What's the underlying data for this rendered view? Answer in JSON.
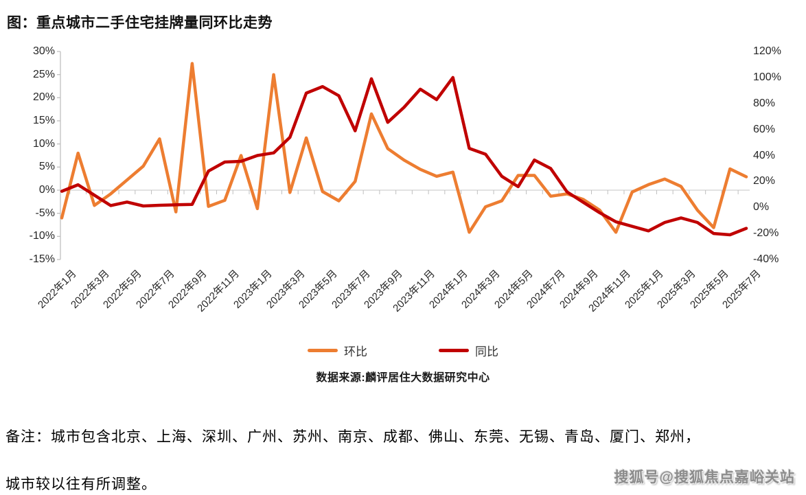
{
  "title": "图：重点城市二手住宅挂牌量同环比走势",
  "source_note": "数据来源:麟评居住大数据研究中心",
  "footnote_line1": "备注：城市包含北京、上海、深圳、广州、苏州、南京、成都、佛山、东莞、无锡、青岛、厦门、郑州，",
  "footnote_line2": "城市较以往有所调整。",
  "watermark": "搜狐号@搜狐焦点嘉峪关站",
  "chart_data": {
    "type": "line",
    "title": "重点城市二手住宅挂牌量同环比走势",
    "x": [
      "2022年1月",
      "2022年2月",
      "2022年3月",
      "2022年4月",
      "2022年5月",
      "2022年6月",
      "2022年7月",
      "2022年8月",
      "2022年9月",
      "2022年10月",
      "2022年11月",
      "2022年12月",
      "2023年1月",
      "2023年2月",
      "2023年3月",
      "2023年4月",
      "2023年5月",
      "2023年6月",
      "2023年7月",
      "2023年8月",
      "2023年9月",
      "2023年10月",
      "2023年11月",
      "2023年12月",
      "2024年1月",
      "2024年2月",
      "2024年3月",
      "2024年4月",
      "2024年5月",
      "2024年6月",
      "2024年7月",
      "2024年8月",
      "2024年9月",
      "2024年10月",
      "2024年11月",
      "2024年12月",
      "2025年1月",
      "2025年2月",
      "2025年3月",
      "2025年4月",
      "2025年5月",
      "2025年6月",
      "2025年7月"
    ],
    "x_tick_labels": [
      "2022年1月",
      "2022年3月",
      "2022年5月",
      "2022年7月",
      "2022年9月",
      "2022年11月",
      "2023年1月",
      "2023年3月",
      "2023年5月",
      "2023年7月",
      "2023年9月",
      "2023年11月",
      "2024年1月",
      "2024年3月",
      "2024年5月",
      "2024年7月",
      "2024年9月",
      "2024年11月",
      "2025年1月",
      "2025年3月",
      "2025年5月",
      "2025年7月"
    ],
    "series": [
      {
        "name": "环比",
        "axis": "left",
        "unit": "%",
        "color": "#ED7D31",
        "values": [
          -6.0,
          8.0,
          -3.3,
          -0.8,
          2.2,
          5.2,
          11.1,
          -4.7,
          27.4,
          -3.5,
          -2.2,
          7.5,
          -4.0,
          25.0,
          -0.5,
          11.3,
          -0.3,
          -2.3,
          1.9,
          16.5,
          9.0,
          6.5,
          4.5,
          3.0,
          3.9,
          -9.1,
          -3.6,
          -2.3,
          3.2,
          3.2,
          -1.3,
          -0.8,
          -2.0,
          -4.3,
          -9.1,
          -0.4,
          1.2,
          2.4,
          0.8,
          -4.3,
          -8.1,
          4.6,
          2.9
        ]
      },
      {
        "name": "同比",
        "axis": "right",
        "unit": "%",
        "color": "#C00000",
        "values": [
          12.5,
          17.5,
          9.5,
          1.5,
          4.2,
          1.2,
          1.7,
          2.1,
          2.4,
          28.0,
          35.0,
          35.5,
          40.0,
          42.0,
          54.0,
          88.0,
          93.0,
          86.0,
          59.0,
          99.0,
          65.5,
          77.0,
          91.0,
          83.0,
          100.0,
          45.5,
          41.0,
          24.0,
          16.0,
          36.5,
          30.0,
          12.0,
          4.0,
          -4.0,
          -11.0,
          -14.5,
          -18.0,
          -11.5,
          -8.0,
          -11.5,
          -20.0,
          -21.0,
          -16.0
        ]
      }
    ],
    "left_axis": {
      "min": -15,
      "max": 30,
      "step": 5,
      "ticks": [
        "30%",
        "25%",
        "20%",
        "15%",
        "10%",
        "5%",
        "0%",
        "-5%",
        "-10%",
        "-15%"
      ]
    },
    "right_axis": {
      "min": -40,
      "max": 120,
      "step": 20,
      "ticks": [
        "120%",
        "100%",
        "80%",
        "60%",
        "40%",
        "20%",
        "0%",
        "-20%",
        "-40%"
      ]
    },
    "grid": "horizontal zero line only",
    "legend_position": "bottom"
  },
  "legend": {
    "items": [
      {
        "label": "环比",
        "color": "#ED7D31"
      },
      {
        "label": "同比",
        "color": "#C00000"
      }
    ]
  }
}
